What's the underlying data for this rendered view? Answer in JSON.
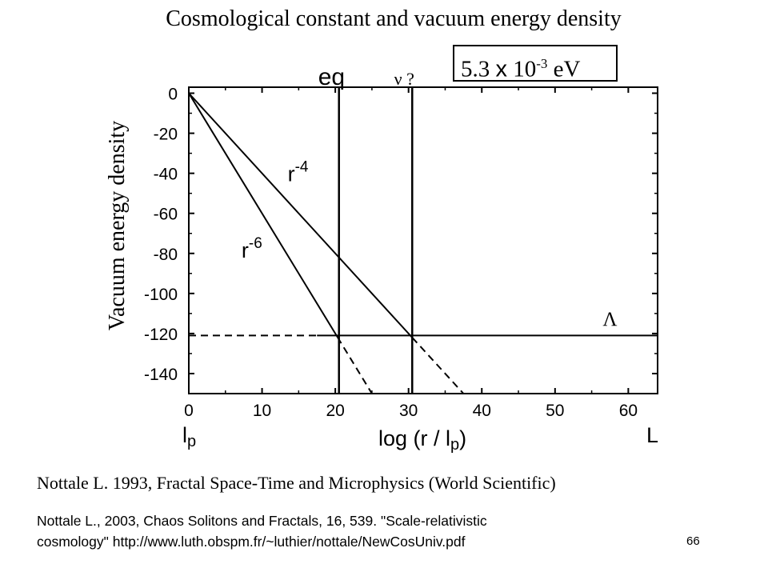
{
  "slide": {
    "title": "Cosmological constant and vacuum energy density",
    "energy_box": {
      "mantissa": "5.3",
      "times": "x",
      "base": "10",
      "exponent": "-3",
      "unit": "eV"
    },
    "reference_1": "Nottale L. 1993, Fractal Space-Time and Microphysics (World Scientific)",
    "reference_2_line1": "Nottale L., 2003, Chaos Solitons and Fractals, 16, 539. \"Scale-relativistic",
    "reference_2_line2": "cosmology\" http://www.luth.obspm.fr/~luthier/nottale/NewCosUniv.pdf",
    "page_number": "66"
  },
  "chart_data": {
    "type": "line",
    "title": "",
    "xlabel": "log (r / lp)",
    "ylabel": "Vacuum energy density",
    "xlim": [
      0,
      64
    ],
    "ylim": [
      -150,
      3
    ],
    "x_ticks": [
      0,
      10,
      20,
      30,
      40,
      50,
      60
    ],
    "y_ticks": [
      0,
      -20,
      -40,
      -60,
      -80,
      -100,
      -120,
      -140
    ],
    "grid": false,
    "x_end_labels": {
      "left": "lp",
      "right": "L"
    },
    "series": [
      {
        "label": "r-4",
        "solid": [
          [
            0,
            0
          ],
          [
            30.5,
            -122
          ]
        ],
        "dashed": [
          [
            30.5,
            -122
          ],
          [
            37.5,
            -150
          ]
        ]
      },
      {
        "label": "r-6",
        "solid": [
          [
            0,
            0
          ],
          [
            20.3,
            -121.8
          ]
        ],
        "dashed": [
          [
            20.3,
            -121.8
          ],
          [
            25,
            -150
          ]
        ]
      },
      {
        "label": "Λ",
        "solid": [
          [
            17.5,
            -121
          ],
          [
            64,
            -121
          ]
        ],
        "dashed": [
          [
            0,
            -121
          ],
          [
            17.5,
            -121
          ]
        ]
      }
    ],
    "vertical_lines": [
      {
        "x": 20.5,
        "label": "eq"
      },
      {
        "x": 30.5,
        "label": "ν ?"
      }
    ],
    "curve_labels": {
      "r4": {
        "base": "r",
        "exp": "-4"
      },
      "r6": {
        "base": "r",
        "exp": "-6"
      },
      "lambda": "Λ"
    }
  }
}
